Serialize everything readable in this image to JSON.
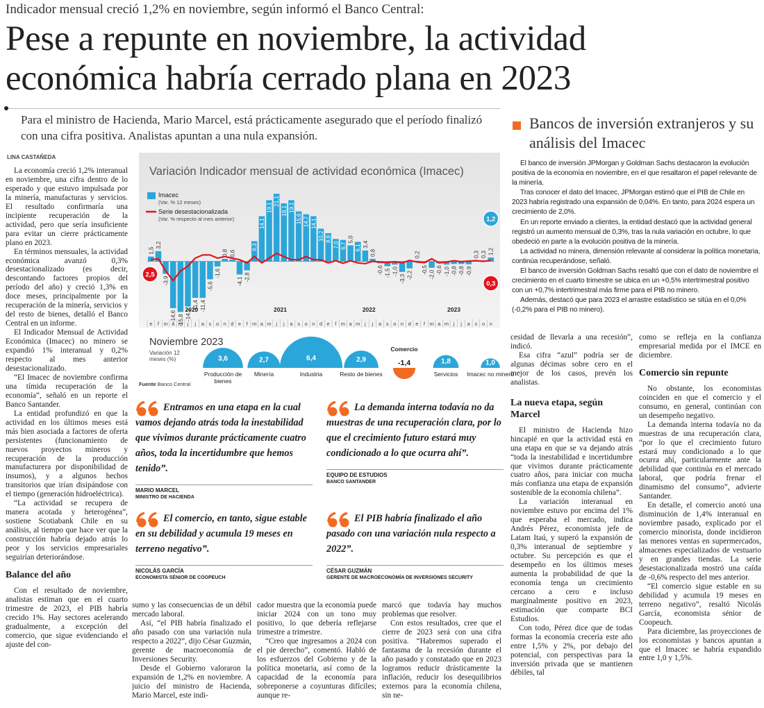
{
  "header": {
    "kicker": "Indicador mensual creció 1,2% en noviembre, según informó el Banco Central:",
    "headline": "Pese a repunte en noviembre, la actividad económica habría cerrado plana en 2023",
    "dek": "Para el ministro de Hacienda, Mario Marcel, está prácticamente asegurado que el período finalizó con una cifra positiva. Analistas apuntan a una nula expansión.",
    "byline": "LINA CASTAÑEDA"
  },
  "sidebar": {
    "title": "Bancos de inversión extranjeros y su análisis del Imacec",
    "paragraphs": [
      "El banco de inversión JPMorgan y Goldman Sachs destacaron la evolución positiva de la economía en noviembre, en el que resaltaron el papel relevante de la minería.",
      "Tras conocer el dato del Imacec, JPMorgan estimó que el PIB de Chile en 2023 habría registrado una expansión de 0,04%. En tanto, para 2024 espera un crecimiento de 2,0%.",
      "En un reporte enviado a clientes, la entidad destacó que la actividad general registró un aumento mensual de 0,3%, tras la nula variación en octubre, lo que obedeció en parte a la evolución positiva de la minería.",
      "La actividad no minera, dimensión relevante al considerar la política monetaria, continúa recuperándose, señaló.",
      "El banco de inversión Goldman Sachs resaltó que con el dato de noviembre el crecimiento en el cuarto trimestre se ubica en un +0,5% intertrimestral positivo con un +0,7% intertrimestral más firme para el PIB no minero.",
      "Además, destacó que para 2023 el arrastre estadístico se sitúa en el 0,0% (-0,2% para el PIB no minero)."
    ]
  },
  "columns": [
    {
      "blocks": [
        {
          "text": "La economía creció 1,2% interanual en noviembre, una cifra dentro de lo esperado y que estuvo impulsada por la minería, manufacturas y servicios. El resultado confirmaría una incipiente recuperación de la actividad, pero que sería insuficiente para evitar un cierre prácticamente plano en 2023."
        },
        {
          "text": "En términos mensuales, la actividad económica avanzó 0,3% desestacionalizado (es decir, descontando factores propios del período del año) y creció 1,3% en doce meses, principalmente por la recuperación de la minería, servicios y del resto de bienes, detalló el Banco Central en un informe."
        },
        {
          "text": "El Indicador Mensual de Actividad Económica (Imacec) no minero se expandió 1% interanual y 0,2% respecto al mes anterior desestacionalizado."
        },
        {
          "text": "“El Imacec de noviembre confirma una tímida recuperación de la economía”, señaló en un reporte el Banco Santander."
        },
        {
          "text": "La entidad profundizó en que la actividad en los últimos meses está más bien asociada a factores de oferta persistentes (funcionamiento de nuevos proyectos mineros y recuperación de la producción manufacturera por disponibilidad de insumos), y a algunos hechos transitorios que irían disipándose con el tiempo (generación hidroeléctrica)."
        },
        {
          "text": "“La actividad se recupera de manera acotada y heterogénea”, sostiene Scotiabank Chile en su análisis, al tiempo que hace ver que la construcción habría dejado atrás lo peor y los servicios empresariales seguirían deteriorándose."
        },
        {
          "heading": "Balance del año"
        },
        {
          "text": "Con el resultado de noviembre, analistas estiman que en el cuarto trimestre de 2023, el PIB habría crecido 1%. Hay sectores acelerando gradualmente, a excepción del comercio, que sigue evidenciando el ajuste del con-"
        }
      ]
    },
    {
      "blocks": [
        {
          "text": "sumo y las consecuencias de un débil mercado laboral."
        },
        {
          "text": "Así, “el PIB habría finalizado el año pasado con una variación nula respecto a 2022”, dijo César Guzmán, gerente de macroeconomía de Inversiones Security."
        },
        {
          "text": "Desde el Gobierno valoraron la expansión de 1,2% en noviembre. A juicio del ministro de Hacienda, Mario Marcel, este indi-"
        }
      ]
    },
    {
      "blocks": [
        {
          "text": "cador muestra que la economía puede iniciar 2024 con un tono muy positivo, lo que debería reflejarse trimestre a trimestre."
        },
        {
          "text": "“Creo que ingresamos a 2024 con el pie derecho”, comentó. Habló de los esfuerzos del Gobierno y de la política monetaria, así como de la capacidad de la economía para sobreponerse a coyunturas difíciles; aunque re-"
        }
      ]
    },
    {
      "blocks": [
        {
          "text": "marcó que todavía hay muchos problemas que resolver."
        },
        {
          "text": "Con estos resultados, cree que el cierre de 2023 será con una cifra positiva. “Habremos superado el fantasma de la recesión durante el año pasado y constatado que en 2023 logramos reducir drásticamente la inflación, reducir los desequilibrios externos para la economía chilena, sin ne-"
        }
      ]
    },
    {
      "blocks": [
        {
          "text": "cesidad de llevarla a una recesión”, indicó."
        },
        {
          "text": "Esa cifra “azul” podría ser de algunas décimas sobre cero en el mejor de los casos, prevén los analistas."
        },
        {
          "heading": "La nueva etapa, según Marcel"
        },
        {
          "text": "El ministro de Hacienda hizo hincapié en que la actividad está en una etapa en que se va dejando atrás “toda la inestabilidad e incertidumbre que vivimos durante prácticamente cuatro años, para iniciar con mucha más confianza una etapa de expansión sostenible de la economía chilena”."
        },
        {
          "text": "La variación interanual en noviembre estuvo por encima del 1% que esperaba el mercado, indica Andrés Pérez, economista jefe de Latam Itaú, y superó la expansión de 0,3% interanual de septiembre y octubre. Su percepción es que el desempeño en los últimos meses aumenta la probabilidad de que la economía tenga un crecimiento cercano a cero e incluso marginalmente positivo en 2023, estimación que comparte BCI Estudios."
        },
        {
          "text": "Con todo, Pérez dice que de todas formas la economía crecería este año entre 1,5% y 2%, por debajo del potencial, con perspectivas para la inversión privada que se mantienen débiles, tal"
        }
      ]
    },
    {
      "blocks": [
        {
          "text": "como se refleja en la confianza empresarial medida por el IMCE en diciembre."
        },
        {
          "heading": "Comercio sin repunte"
        },
        {
          "text": "No obstante, los economistas coinciden en que el comercio y el consumo, en general, continúan con un desempeño negativo."
        },
        {
          "text": "La demanda interna todavía no da muestras de una recuperación clara, “por lo que el crecimiento futuro estará muy condicionado a lo que ocurra ahí, particularmente ante la debilidad que continúa en el mercado laboral, que podría frenar el dinamismo del consumo”, advierte Santander."
        },
        {
          "text": "En detalle, el comercio anotó una disminución de 1,4% interanual en noviembre pasado, explicado por el comercio minorista, donde incidieron las menores ventas en supermercados, almacenes especializados de vestuario y en grandes tiendas. La serie desestacionalizada mostró una caída de -0,6% respecto del mes anterior."
        },
        {
          "text": "“El comercio sigue estable en su debilidad y acumula 19 meses en terreno negativo”, resaltó Nicolás García, economista sénior de Coopeuch."
        },
        {
          "text": "Para diciembre, las proyecciones de los economistas y bancos apuntan a que el Imacec se habría expandido entre 1,0 y 1,5%."
        }
      ]
    }
  ],
  "quotes": [
    {
      "text": "Entramos en una etapa en la cual vamos dejando atrás toda la inestabilidad que vivimos durante prácticamente cuatro años, toda la incertidumbre que hemos tenido”.",
      "name": "MARIO MARCEL",
      "role": "MINISTRO DE HACIENDA"
    },
    {
      "text": "La demanda interna todavía no da muestras de una recuperación clara, por lo que el crecimiento futuro estará muy condicionado a lo que ocurra ahí”.",
      "name": "EQUIPO DE ESTUDIOS",
      "role": "BANCO SANTANDER"
    },
    {
      "text": "El comercio, en tanto, sigue estable en su debilidad y acumula 19 meses en terreno negativo”.",
      "name": "NICOLÁS GARCÍA",
      "role": "ECONOMISTA SÉNIOR DE COOPEUCH"
    },
    {
      "text": "El PIB habría finalizado el año pasado con una variación nula respecto a 2022”.",
      "name": "CÉSAR GUZMÁN",
      "role": "GERENTE DE MACROECONOMÍA DE INVERSIONES SECURITY"
    }
  ],
  "chart_data": [
    {
      "type": "bar",
      "title": "Variación Indicador mensual de actividad económica (Imacec)",
      "categories": [
        "e",
        "f",
        "m",
        "a",
        "m",
        "j",
        "j",
        "a",
        "s",
        "o",
        "n",
        "d",
        "e",
        "f",
        "m",
        "a",
        "m",
        "j",
        "j",
        "a",
        "s",
        "o",
        "n",
        "d",
        "e",
        "f",
        "m",
        "a",
        "m",
        "j",
        "j",
        "a",
        "s",
        "o",
        "n",
        "d",
        "e",
        "f",
        "m",
        "a",
        "m",
        "j",
        "j",
        "a",
        "s",
        "o",
        "n"
      ],
      "years": [
        2020,
        2021,
        2022,
        2023
      ],
      "ylim": [
        -17,
        22
      ],
      "series": [
        {
          "name": "Imacec",
          "note": "(Var. % 12 meses)",
          "type": "bar",
          "color": "#2ba6d9",
          "values": [
            1.5,
            3.2,
            -3.9,
            -14.6,
            -15.8,
            -14.1,
            -11.4,
            -11.4,
            -5.6,
            -1.6,
            0.8,
            0.6,
            -4.1,
            -2.8,
            6.3,
            14.1,
            19.1,
            21.1,
            18.1,
            19.1,
            15.6,
            14.7,
            14.1,
            10.2,
            8.8,
            7.0,
            6.7,
            5.0,
            6.1,
            3.4,
            0.8,
            -0.6,
            -1.5,
            -1.0,
            -3.3,
            -2.2,
            0.2,
            -0.5,
            -2.0,
            -0.6,
            -1.0,
            -0.8,
            -0.8,
            -0.9,
            0.3,
            0.3,
            1.2
          ],
          "value_labels": [
            "1,5",
            "3,2",
            "-3,9",
            "-14,6",
            "-15,8",
            "-14,1",
            "-11,4",
            "-11,4",
            "-5,6",
            "-1,6",
            "0,8",
            "0,6",
            "-4,1",
            "-2,8",
            "6,3",
            "14,1",
            "19,1",
            "21,1",
            "18,1",
            "19,1",
            "15,6",
            "14,7",
            "14,1",
            "10,2",
            "8,8",
            "7,0",
            "6,7",
            "5,0",
            "6,1",
            "3,4",
            "0,8",
            "-0,6",
            "-1,5",
            "-1,0",
            "-3,3",
            "-2,2",
            "0,2",
            "-0,5",
            "-2,0",
            "-0,6",
            "-1,0",
            "-0,8",
            "-0,8",
            "-0,9",
            "0,3",
            "0,3",
            "1,2"
          ]
        },
        {
          "name": "Serie desestacionalizada",
          "note": "(Var. % respecto al mes anterior)",
          "type": "line",
          "color": "#e3121b",
          "values": [
            0.5,
            0.8,
            -3.0,
            -6.0,
            -3.0,
            -1.5,
            1.0,
            2.0,
            2.0,
            1.0,
            1.5,
            1.0,
            0.5,
            -0.5,
            1.5,
            -0.5,
            1.0,
            2.5,
            1.5,
            0.5,
            0.5,
            1.5,
            0.5,
            0.5,
            -0.5,
            0.2,
            -0.6,
            0.2,
            -0.5,
            -0.7,
            0.0,
            -0.2,
            -0.4,
            -0.1,
            -0.5,
            0.3,
            -0.2,
            -0.4,
            0.8,
            -0.5,
            -0.2,
            0.2,
            -0.1,
            0.1,
            0.2,
            0.0,
            0.3
          ]
        }
      ],
      "callouts": [
        {
          "value": 2.5,
          "label": "2,5",
          "color": "#e3121b"
        },
        {
          "value": 1.2,
          "label": "1,2",
          "color": "#2ba6d9"
        },
        {
          "value": 0.3,
          "label": "0,3",
          "color": "#e3121b"
        }
      ]
    },
    {
      "type": "bubble",
      "title": "Noviembre 2023",
      "subtitle": "Variación 12 meses (%)",
      "categories": [
        "Producción de bienes",
        "Minería",
        "Industria",
        "Resto de bienes",
        "Comercio",
        "Servicios",
        "Imacec no minero"
      ],
      "values": [
        3.6,
        2.7,
        6.4,
        2.9,
        -1.4,
        1.8,
        1.0
      ],
      "value_labels": [
        "3,6",
        "2,7",
        "6,4",
        "2,9",
        "-1,4",
        "1,8",
        "1,0"
      ],
      "color": "#2ba6d9",
      "negative_color": "#f26a21",
      "source_label": "Fuente",
      "source": "Banco Central"
    }
  ]
}
